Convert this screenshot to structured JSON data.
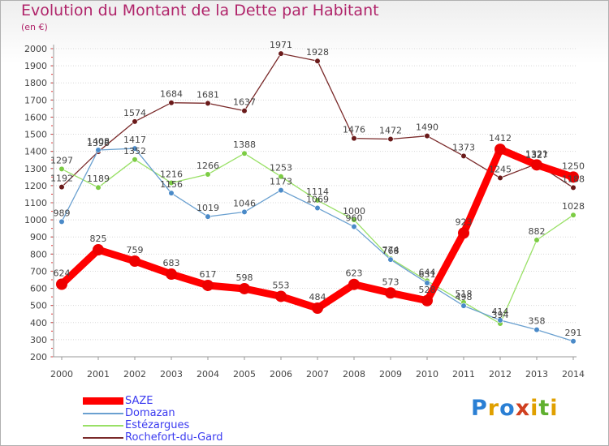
{
  "title": "Evolution du Montant de la Dette par Habitant",
  "subtitle": "(en €)",
  "logo": {
    "letters": [
      "P",
      "r",
      "o",
      "x",
      "i",
      "t",
      "i"
    ],
    "colors": [
      "#2a7fd4",
      "#e0a000",
      "#2a7fd4",
      "#d04020",
      "#e0a000",
      "#60b030",
      "#e0a000"
    ]
  },
  "chart_data": {
    "type": "line",
    "x": [
      "2000",
      "2001",
      "2002",
      "2003",
      "2004",
      "2005",
      "2006",
      "2007",
      "2008",
      "2009",
      "2010",
      "2011",
      "2012",
      "2013",
      "2014"
    ],
    "ylim": [
      200,
      2000
    ],
    "yticks": [
      200,
      300,
      400,
      500,
      600,
      700,
      800,
      900,
      1000,
      1100,
      1200,
      1300,
      1400,
      1500,
      1600,
      1700,
      1800,
      1900,
      2000
    ],
    "grid": "horizontal",
    "legend": "bottom-left",
    "series": [
      {
        "name": "Rochefort-du-Gard",
        "color": "#7a2a2a",
        "marker": "#6a1a1a",
        "values": [
          1192,
          1398,
          1574,
          1684,
          1681,
          1637,
          1971,
          1928,
          1476,
          1472,
          1490,
          1373,
          1245,
          1327,
          1188
        ],
        "labels": [
          "1192",
          "1398",
          "1574",
          "1684",
          "1681",
          "1637",
          "1971",
          "1928",
          "1476",
          "1472",
          "1490",
          "1373",
          "1245",
          "1327",
          "1188"
        ]
      },
      {
        "name": "Estézargues",
        "color": "#99e066",
        "marker": "#7ccc44",
        "values": [
          1297,
          1189,
          1352,
          1216,
          1266,
          1388,
          1253,
          1114,
          1000,
          774,
          644,
          518,
          394,
          882,
          1028
        ],
        "labels": [
          "1297",
          "1189",
          "1352",
          "1216",
          "1266",
          "1388",
          "1253",
          "1114",
          "1000",
          "774",
          "644",
          "518",
          "394",
          "882",
          "1028"
        ]
      },
      {
        "name": "Domazan",
        "color": "#6aa0d0",
        "marker": "#4a8ac8",
        "values": [
          989,
          1408,
          1417,
          1156,
          1019,
          1046,
          1173,
          1069,
          960,
          768,
          631,
          498,
          414,
          358,
          291
        ],
        "labels": [
          "989",
          "1408",
          "1417",
          "1156",
          "1019",
          "1046",
          "1173",
          "1069",
          "960",
          "768",
          "631",
          "498",
          "414",
          "358",
          "291"
        ]
      },
      {
        "name": "SAZE",
        "color": "#ff0000",
        "marker": "#ee0000",
        "values": [
          624,
          825,
          759,
          683,
          617,
          598,
          553,
          484,
          623,
          573,
          528,
          923,
          1412,
          1321,
          1250
        ],
        "labels": [
          "624",
          "825",
          "759",
          "683",
          "617",
          "598",
          "553",
          "484",
          "623",
          "573",
          "528",
          "923",
          "1412",
          "1321",
          "1250"
        ]
      }
    ],
    "legend_order": [
      "SAZE",
      "Domazan",
      "Estézargues",
      "Rochefort-du-Gard"
    ]
  }
}
